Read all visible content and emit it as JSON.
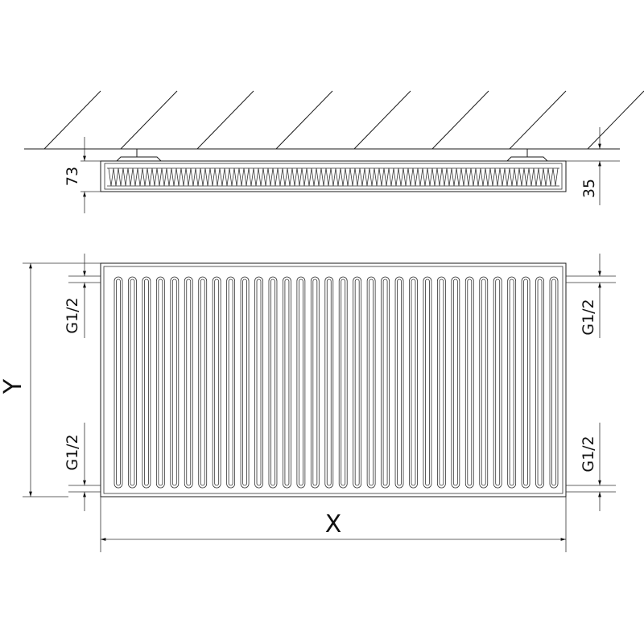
{
  "dimensions": {
    "depth": "73",
    "wall_gap": "35",
    "height": "Y",
    "width": "X",
    "connection_top_left": "G1/2",
    "connection_bottom_left": "G1/2",
    "connection_top_right": "G1/2",
    "connection_bottom_right": "G1/2"
  },
  "colors": {
    "line": "#1a1a1a",
    "background": "#ffffff"
  }
}
